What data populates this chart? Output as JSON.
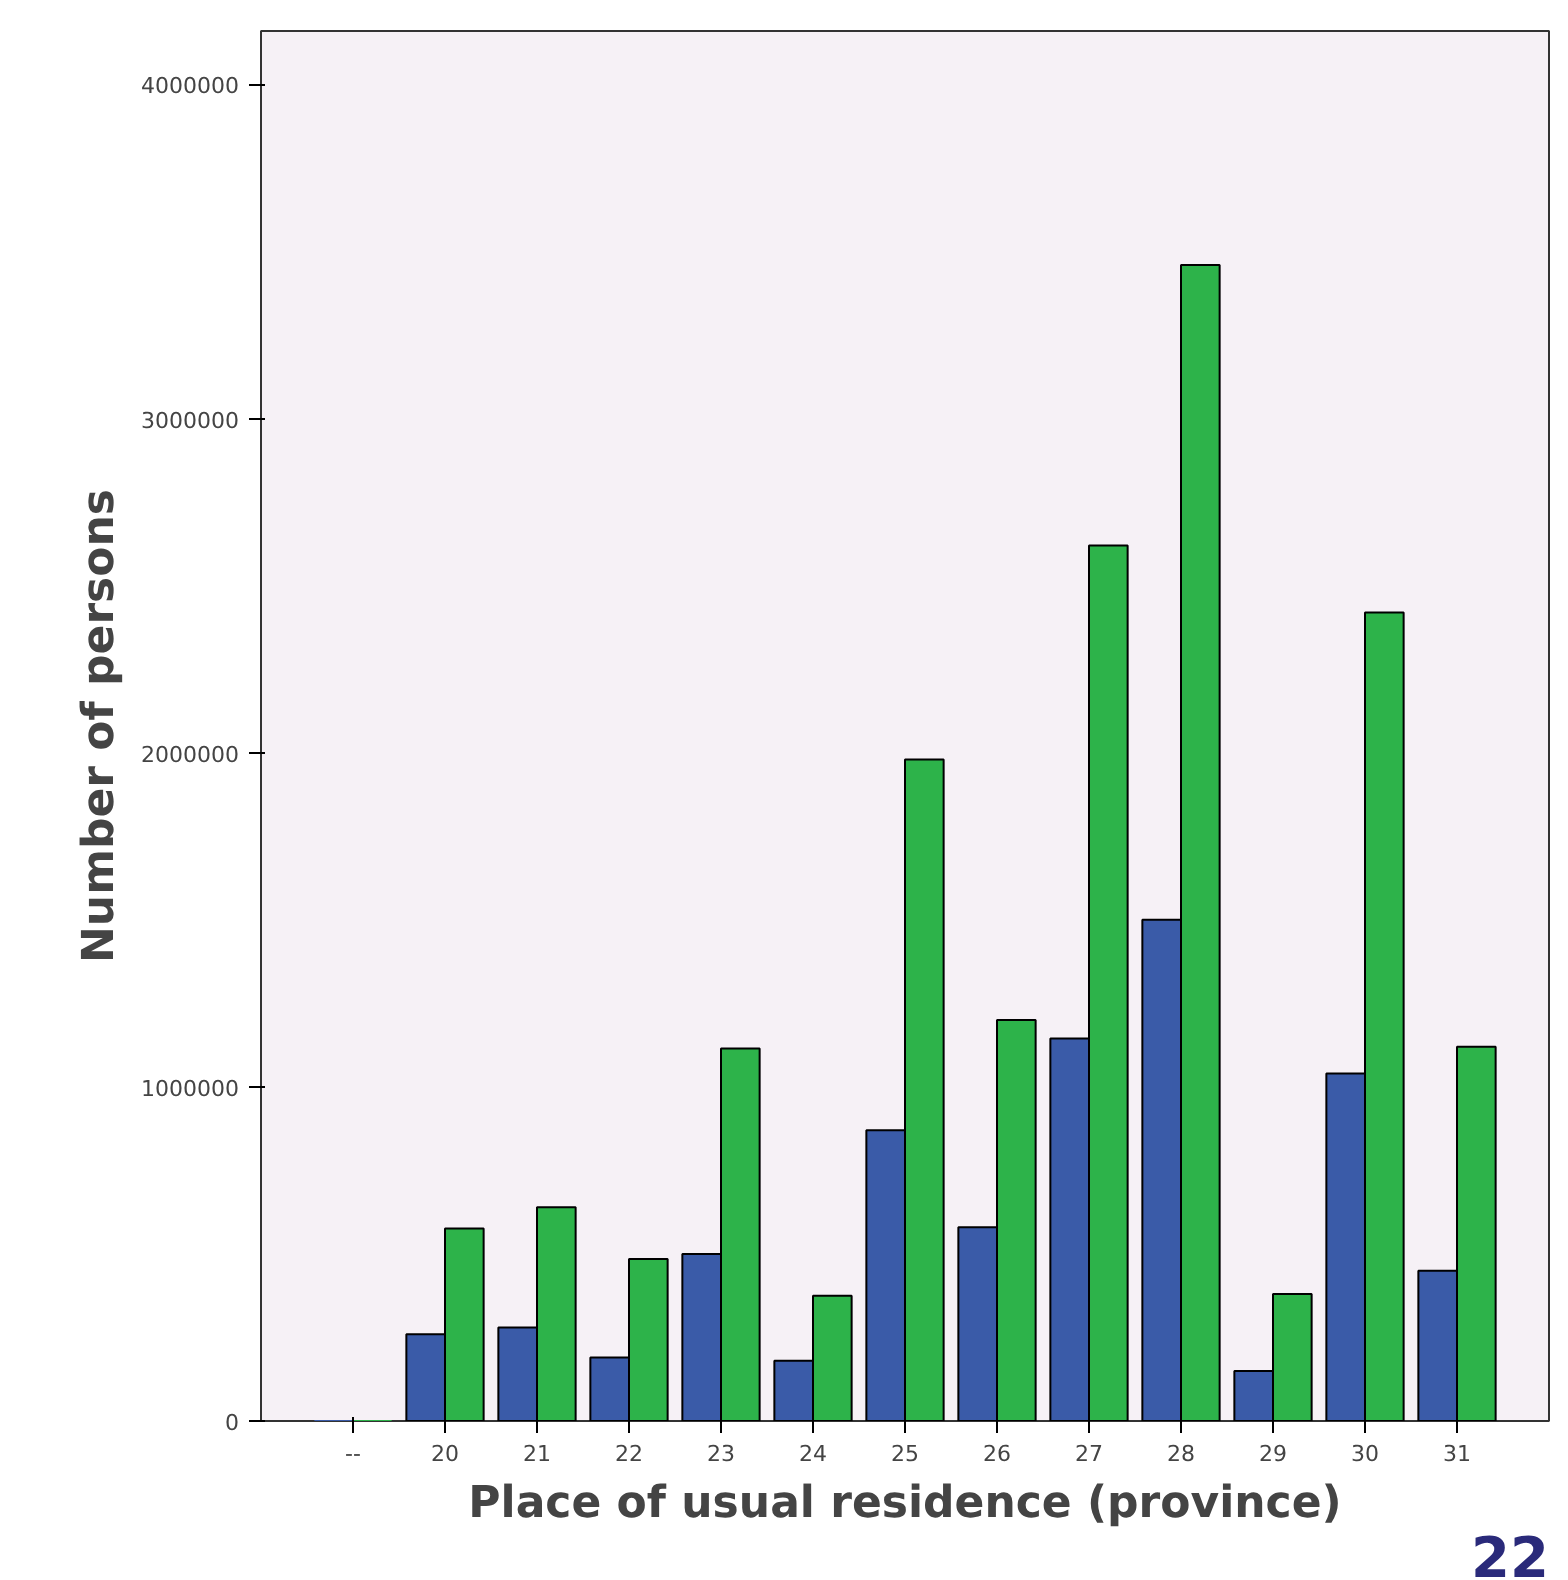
{
  "chart_data": {
    "type": "bar",
    "xlabel": "Place of usual residence (province)",
    "ylabel": "Number of persons",
    "categories": [
      "--",
      "20",
      "21",
      "22",
      "23",
      "24",
      "25",
      "26",
      "27",
      "28",
      "29",
      "30",
      "31"
    ],
    "series": [
      {
        "color": "#3a5ba8",
        "values": [
          0,
          260000,
          280000,
          190000,
          500000,
          180000,
          870000,
          580000,
          1145000,
          1500000,
          150000,
          1040000,
          450000
        ]
      },
      {
        "color": "#2db34a",
        "values": [
          0,
          576000,
          640000,
          485000,
          1115000,
          375000,
          1980000,
          1200000,
          2620000,
          3460000,
          380000,
          2420000,
          1120000
        ]
      }
    ],
    "ylim": [
      0,
      4160000
    ],
    "yticks": [
      0,
      1000000,
      2000000,
      3000000,
      4000000
    ],
    "grid": false,
    "annotations": [
      "22"
    ]
  }
}
